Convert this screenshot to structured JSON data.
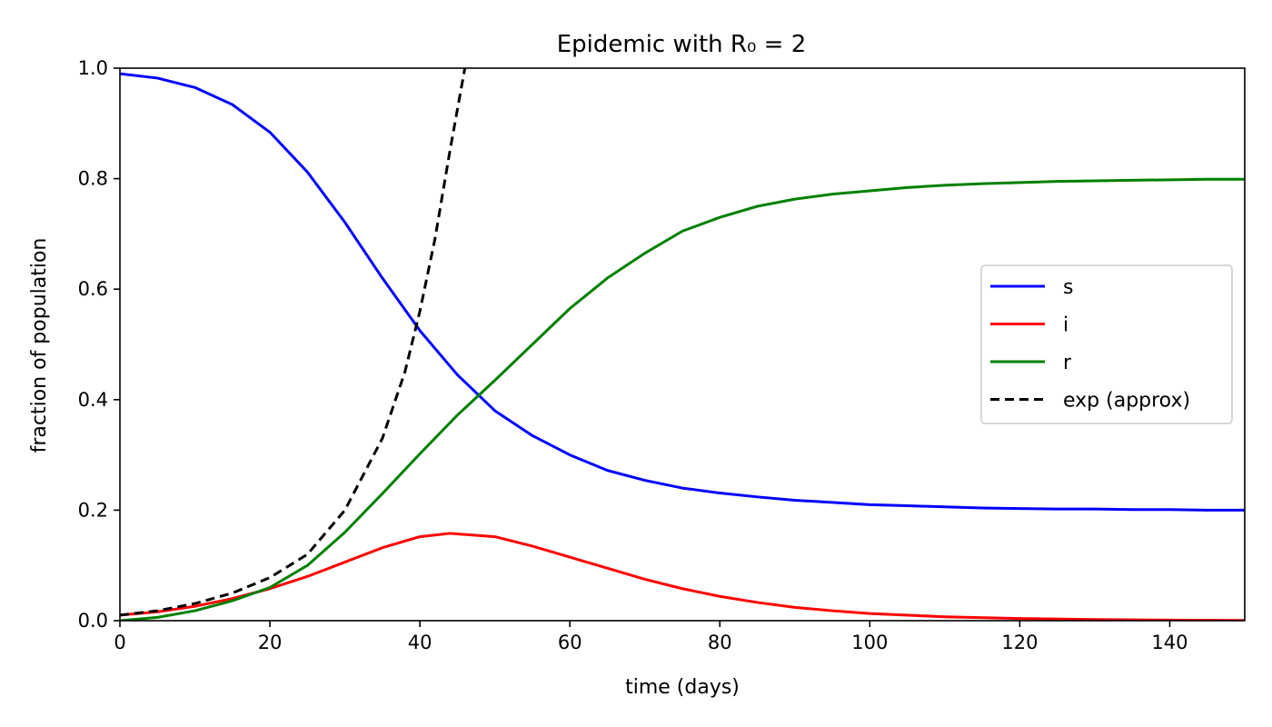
{
  "chart_data": {
    "type": "line",
    "title": "Epidemic with R₀ = 2",
    "xlabel": "time (days)",
    "ylabel": "fraction of population",
    "xlim": [
      0,
      150
    ],
    "ylim": [
      0,
      1.0
    ],
    "xticks": [
      0,
      20,
      40,
      60,
      80,
      100,
      120,
      140
    ],
    "yticks": [
      0.0,
      0.2,
      0.4,
      0.6,
      0.8,
      1.0
    ],
    "xtick_labels": [
      "0",
      "20",
      "40",
      "60",
      "80",
      "100",
      "120",
      "140"
    ],
    "ytick_labels": [
      "0.0",
      "0.2",
      "0.4",
      "0.6",
      "0.8",
      "1.0"
    ],
    "grid": false,
    "legend_position": "center-right",
    "series": [
      {
        "name": "s",
        "color": "#0000ff",
        "style": "solid",
        "x": [
          0,
          5,
          10,
          15,
          20,
          25,
          30,
          35,
          40,
          45,
          50,
          55,
          60,
          65,
          70,
          75,
          80,
          85,
          90,
          95,
          100,
          105,
          110,
          115,
          120,
          125,
          130,
          135,
          140,
          145,
          150
        ],
        "y": [
          0.99,
          0.982,
          0.965,
          0.934,
          0.884,
          0.812,
          0.721,
          0.62,
          0.525,
          0.445,
          0.38,
          0.335,
          0.3,
          0.272,
          0.254,
          0.24,
          0.231,
          0.224,
          0.218,
          0.214,
          0.21,
          0.208,
          0.206,
          0.204,
          0.203,
          0.202,
          0.202,
          0.201,
          0.201,
          0.2,
          0.2
        ]
      },
      {
        "name": "i",
        "color": "#ff0000",
        "style": "solid",
        "x": [
          0,
          5,
          10,
          15,
          20,
          25,
          30,
          35,
          40,
          44,
          50,
          55,
          60,
          65,
          70,
          75,
          80,
          85,
          90,
          95,
          100,
          110,
          120,
          130,
          140,
          150
        ],
        "y": [
          0.01,
          0.016,
          0.026,
          0.04,
          0.058,
          0.08,
          0.106,
          0.132,
          0.152,
          0.158,
          0.152,
          0.135,
          0.115,
          0.095,
          0.075,
          0.058,
          0.044,
          0.033,
          0.024,
          0.018,
          0.013,
          0.007,
          0.004,
          0.002,
          0.001,
          0.0005
        ]
      },
      {
        "name": "r",
        "color": "#008000",
        "style": "solid",
        "x": [
          0,
          5,
          10,
          15,
          20,
          25,
          30,
          35,
          40,
          45,
          50,
          55,
          60,
          65,
          70,
          75,
          80,
          85,
          90,
          95,
          100,
          105,
          110,
          115,
          120,
          125,
          130,
          135,
          140,
          145,
          150
        ],
        "y": [
          0.0,
          0.006,
          0.018,
          0.036,
          0.06,
          0.1,
          0.16,
          0.23,
          0.302,
          0.372,
          0.435,
          0.5,
          0.565,
          0.62,
          0.665,
          0.705,
          0.73,
          0.75,
          0.763,
          0.772,
          0.778,
          0.784,
          0.788,
          0.791,
          0.793,
          0.795,
          0.796,
          0.797,
          0.798,
          0.799,
          0.799
        ]
      },
      {
        "name": "exp (approx)",
        "color": "#000000",
        "style": "dashed",
        "x": [
          0,
          5,
          10,
          15,
          20,
          25,
          30,
          35,
          38,
          40,
          42,
          44,
          46
        ],
        "y": [
          0.01,
          0.018,
          0.031,
          0.05,
          0.078,
          0.12,
          0.2,
          0.33,
          0.45,
          0.56,
          0.69,
          0.85,
          1.0
        ]
      }
    ]
  }
}
